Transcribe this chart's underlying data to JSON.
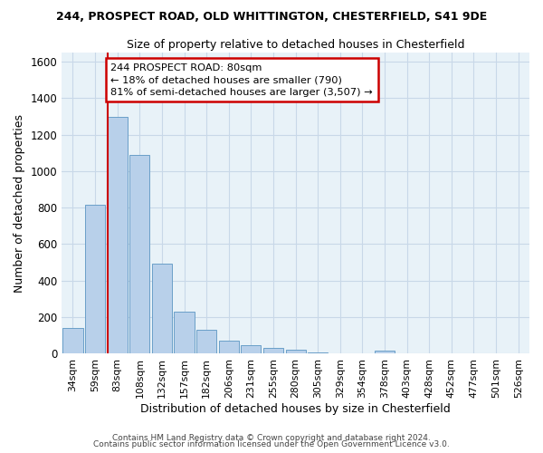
{
  "title1": "244, PROSPECT ROAD, OLD WHITTINGTON, CHESTERFIELD, S41 9DE",
  "title2": "Size of property relative to detached houses in Chesterfield",
  "xlabel": "Distribution of detached houses by size in Chesterfield",
  "ylabel": "Number of detached properties",
  "footer1": "Contains HM Land Registry data © Crown copyright and database right 2024.",
  "footer2": "Contains public sector information licensed under the Open Government Licence v3.0.",
  "categories": [
    "34sqm",
    "59sqm",
    "83sqm",
    "108sqm",
    "132sqm",
    "157sqm",
    "182sqm",
    "206sqm",
    "231sqm",
    "255sqm",
    "280sqm",
    "305sqm",
    "329sqm",
    "354sqm",
    "378sqm",
    "403sqm",
    "428sqm",
    "452sqm",
    "477sqm",
    "501sqm",
    "526sqm"
  ],
  "values": [
    140,
    815,
    1295,
    1090,
    490,
    230,
    130,
    70,
    45,
    28,
    20,
    5,
    0,
    0,
    15,
    0,
    0,
    0,
    0,
    0,
    0
  ],
  "bar_color": "#b8d0ea",
  "bar_edge_color": "#6a9fc8",
  "grid_color": "#c8d8e8",
  "background_color": "#e8f2f8",
  "annotation_line1": "244 PROSPECT ROAD: 80sqm",
  "annotation_line2": "← 18% of detached houses are smaller (790)",
  "annotation_line3": "81% of semi-detached houses are larger (3,507) →",
  "vline_color": "#cc0000",
  "annotation_box_facecolor": "#ffffff",
  "annotation_box_edgecolor": "#cc0000",
  "ylim": [
    0,
    1650
  ],
  "yticks": [
    0,
    200,
    400,
    600,
    800,
    1000,
    1200,
    1400,
    1600
  ],
  "vline_x_index": 2
}
